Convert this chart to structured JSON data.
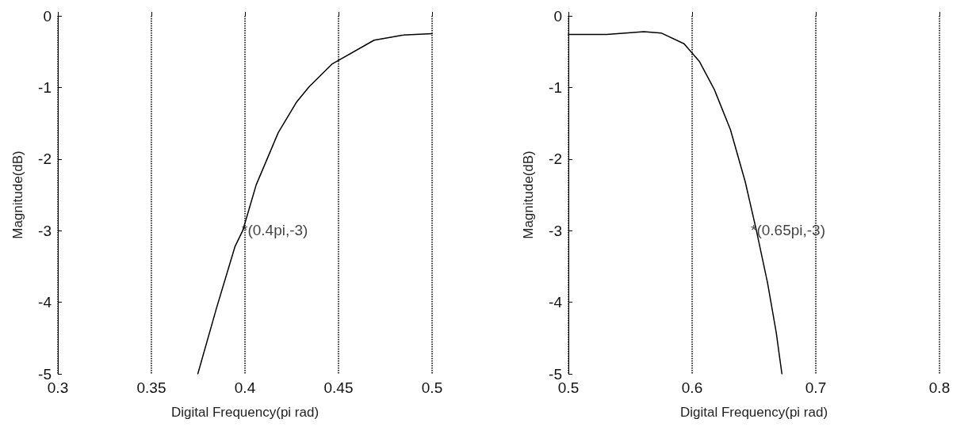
{
  "chart_data": [
    {
      "type": "line",
      "xlabel": "Digital Frequency(pi rad)",
      "ylabel": "Magnitude(dB)",
      "xlim": [
        0.3,
        0.5
      ],
      "xticks": [
        0.3,
        0.35,
        0.4,
        0.45,
        0.5
      ],
      "ylim": [
        -5,
        0
      ],
      "yticks": [
        0,
        -1,
        -2,
        -3,
        -4,
        -5
      ],
      "grid": "x",
      "marker": "none",
      "line_style": "solid",
      "x": [
        0.3748,
        0.3848,
        0.3947,
        0.3988,
        0.406,
        0.4178,
        0.4277,
        0.4343,
        0.4467,
        0.469,
        0.484,
        0.5
      ],
      "series": [
        {
          "color": "#000000",
          "values": [
            -5,
            -4.08,
            -3.22,
            -3.0,
            -2.36,
            -1.63,
            -1.2,
            -0.99,
            -0.67,
            -0.34,
            -0.27,
            -0.25
          ]
        }
      ],
      "annotations": [
        {
          "text": "*(0.4pi,-3)",
          "x": 0.4,
          "y": -3
        }
      ]
    },
    {
      "type": "line",
      "xlabel": "Digital Frequency(pi rad)",
      "ylabel": "Magnitude(dB)",
      "xlim": [
        0.5,
        0.8
      ],
      "xticks": [
        0.5,
        0.6,
        0.7,
        0.8
      ],
      "ylim": [
        -5,
        0
      ],
      "yticks": [
        0,
        -1,
        -2,
        -3,
        -4,
        -5
      ],
      "grid": "x",
      "marker": "none",
      "line_style": "solid",
      "x": [
        0.5,
        0.531,
        0.561,
        0.575,
        0.5935,
        0.606,
        0.618,
        0.631,
        0.643,
        0.652,
        0.661,
        0.668,
        0.6726
      ],
      "series": [
        {
          "color": "#000000",
          "values": [
            -0.26,
            -0.26,
            -0.22,
            -0.24,
            -0.39,
            -0.64,
            -1.03,
            -1.59,
            -2.32,
            -3.0,
            -3.73,
            -4.42,
            -5
          ]
        }
      ],
      "annotations": [
        {
          "text": "*(0.65pi,-3)",
          "x": 0.65,
          "y": -3
        }
      ]
    }
  ]
}
